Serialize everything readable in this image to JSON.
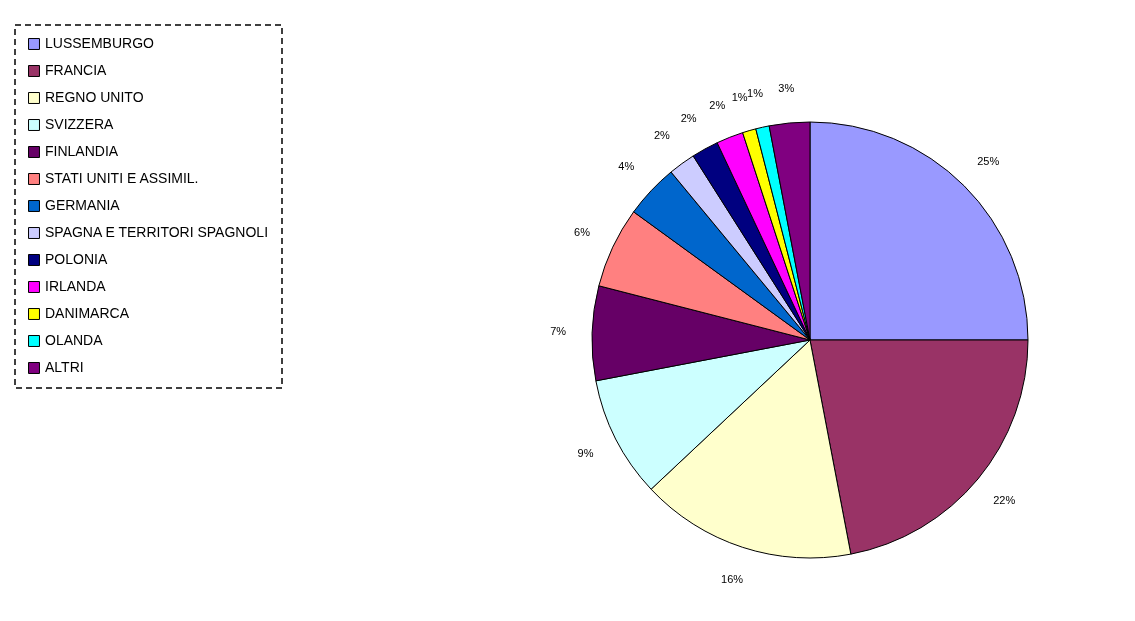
{
  "chart_data": {
    "type": "pie",
    "categories": [
      "LUSSEMBURGO",
      "FRANCIA",
      "REGNO UNITO",
      "SVIZZERA",
      "FINLANDIA",
      "STATI UNITI E ASSIMIL.",
      "GERMANIA",
      "SPAGNA E TERRITORI SPAGNOLI",
      "POLONIA",
      "IRLANDA",
      "DANIMARCA",
      "OLANDA",
      "ALTRI"
    ],
    "values": [
      25,
      22,
      16,
      9,
      7,
      6,
      4,
      2,
      2,
      2,
      1,
      1,
      3
    ],
    "value_labels": [
      "25%",
      "22%",
      "16%",
      "9%",
      "7%",
      "6%",
      "4%",
      "2%",
      "2%",
      "2%",
      "1%",
      "1%",
      "3%"
    ],
    "colors": [
      "#9999ff",
      "#993366",
      "#ffffcc",
      "#ccffff",
      "#660066",
      "#ff8080",
      "#0066cc",
      "#ccccff",
      "#000080",
      "#ff00ff",
      "#ffff00",
      "#00ffff",
      "#800080"
    ],
    "legend": "left"
  }
}
